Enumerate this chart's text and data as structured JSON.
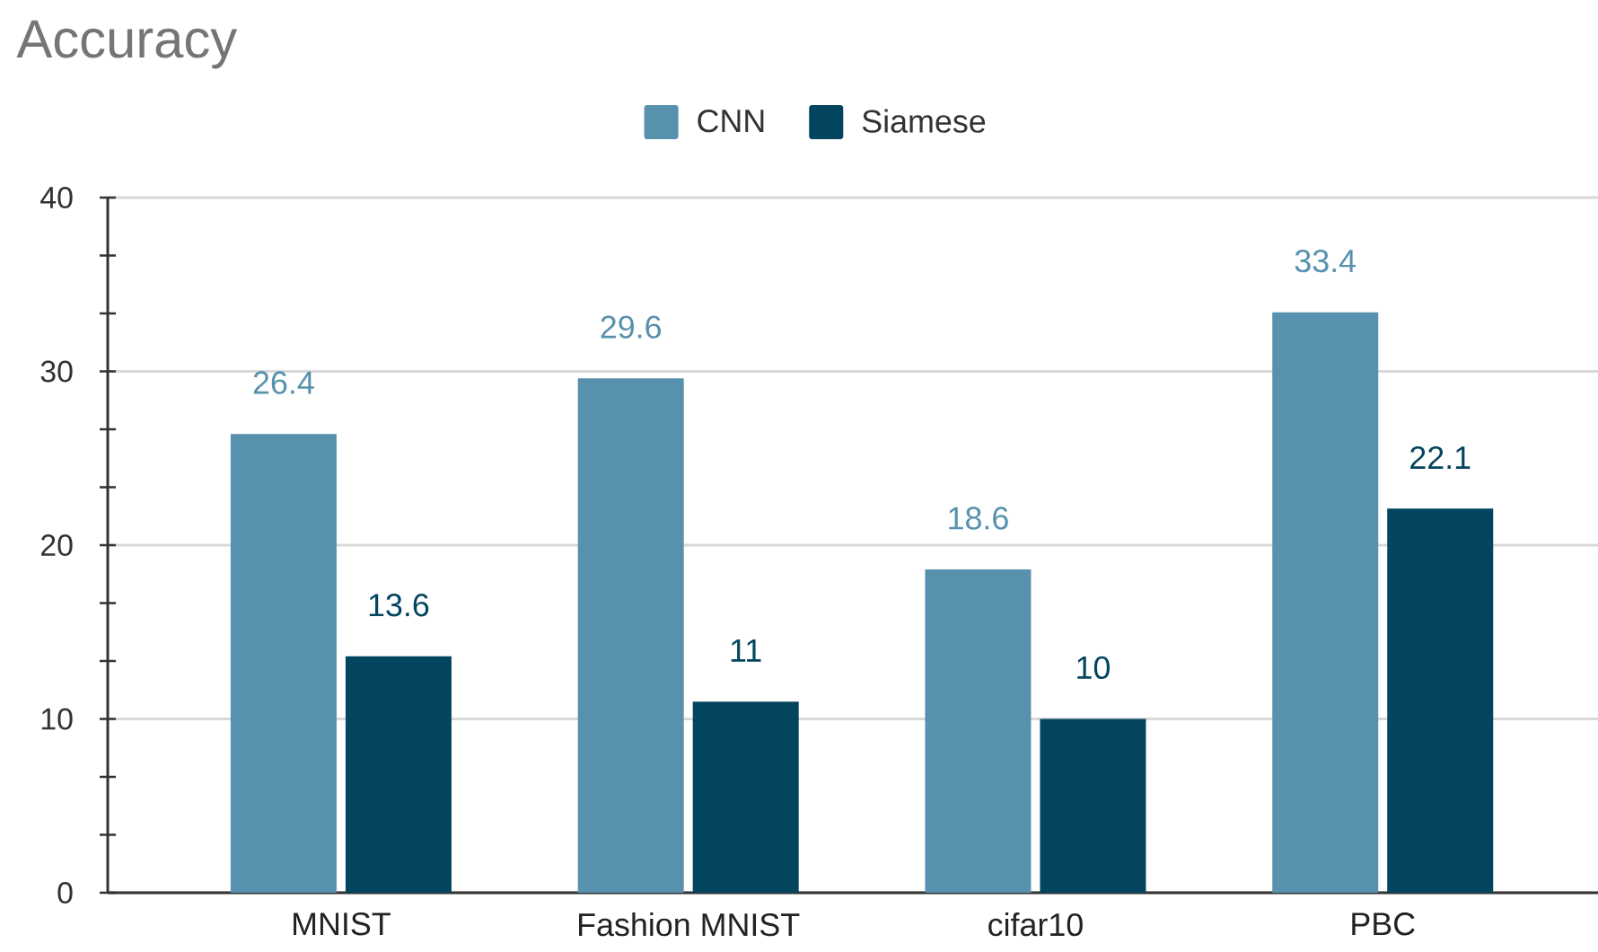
{
  "chart_data": {
    "type": "bar",
    "title": "Accuracy",
    "categories": [
      "MNIST",
      "Fashion MNIST",
      "cifar10",
      "PBC"
    ],
    "series": [
      {
        "name": "CNN",
        "color": "#5891ae",
        "values": [
          26.4,
          29.6,
          18.6,
          33.4
        ]
      },
      {
        "name": "Siamese",
        "color": "#03455f",
        "values": [
          13.6,
          11,
          10,
          22.1
        ]
      }
    ],
    "ylim": [
      0,
      40
    ],
    "yticks": [
      0,
      10,
      20,
      30,
      40
    ],
    "grid": "y",
    "legend": "top",
    "data_labels": true
  }
}
